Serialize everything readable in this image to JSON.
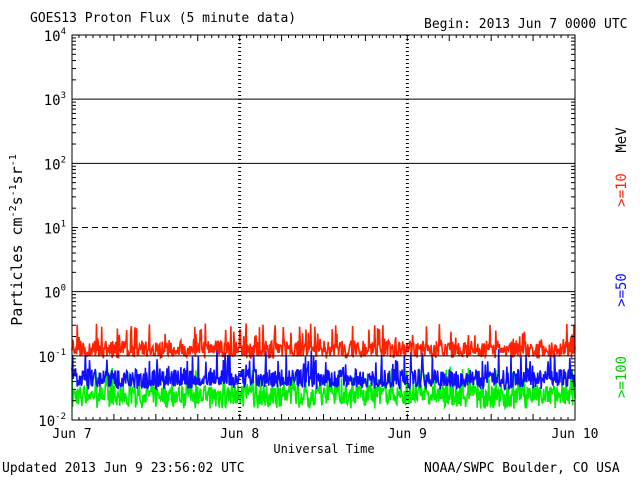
{
  "header": {
    "title": "GOES13 Proton Flux (5 minute data)",
    "begin": "Begin: 2013 Jun 7 0000 UTC"
  },
  "footer": {
    "updated": "Updated 2013 Jun  9 23:56:02 UTC",
    "credit": "NOAA/SWPC Boulder, CO USA"
  },
  "legend": {
    "unit": "MeV",
    "entries": [
      {
        "label": ">=10",
        "color": "#ff2200"
      },
      {
        "label": ">=50",
        "color": "#1010ff"
      },
      {
        "label": ">=100",
        "color": "#00ee00"
      }
    ]
  },
  "chart_data": {
    "type": "line",
    "title": "GOES13 Proton Flux (5 minute data)",
    "xlabel": "Universal Time",
    "ylabel": "Particles cm⁻²s⁻¹sr⁻¹",
    "yscale": "log",
    "ylim": [
      0.01,
      10000
    ],
    "y_ticks": [
      {
        "value": 0.01,
        "base": "10",
        "exp": "-2"
      },
      {
        "value": 0.1,
        "base": "10",
        "exp": "-1"
      },
      {
        "value": 1,
        "base": "10",
        "exp": "0"
      },
      {
        "value": 10,
        "base": "10",
        "exp": "1"
      },
      {
        "value": 100,
        "base": "10",
        "exp": "2"
      },
      {
        "value": 1000,
        "base": "10",
        "exp": "3"
      },
      {
        "value": 10000,
        "base": "10",
        "exp": "4"
      }
    ],
    "xlim": [
      "2013-06-07 00:00",
      "2013-06-10 00:00"
    ],
    "x_ticks": [
      "Jun 7",
      "Jun 8",
      "Jun 9",
      "Jun 10"
    ],
    "threshold_lines": [
      10
    ],
    "grid": "horizontal decade lines",
    "series": [
      {
        "name": ">=10 MeV",
        "color": "#ff2200",
        "typical": 0.13,
        "min": 0.09,
        "max": 0.32
      },
      {
        "name": ">=50 MeV",
        "color": "#1010ff",
        "typical": 0.045,
        "min": 0.03,
        "max": 0.13
      },
      {
        "name": ">=100 MeV",
        "color": "#00ee00",
        "typical": 0.025,
        "min": 0.015,
        "max": 0.07
      }
    ]
  }
}
